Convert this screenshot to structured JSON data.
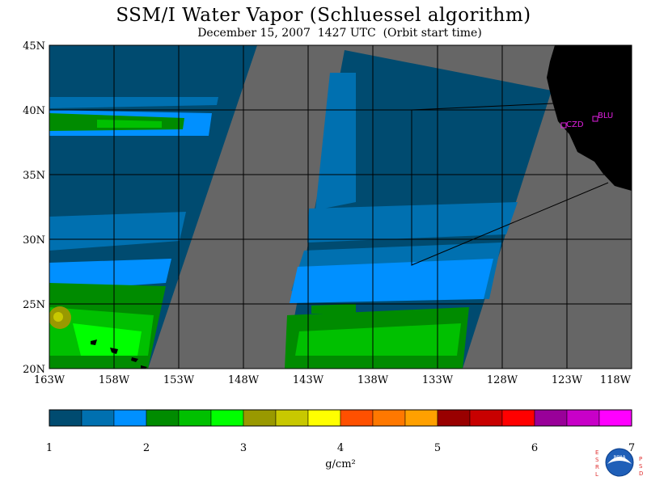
{
  "title": "SSM/I Water Vapor (Schluessel algorithm)",
  "subtitle": "December 15, 2007  1427 UTC  (Orbit start time)",
  "map": {
    "lat_labels": [
      "45N",
      "40N",
      "35N",
      "30N",
      "25N",
      "20N"
    ],
    "lon_labels": [
      "163W",
      "158W",
      "153W",
      "148W",
      "143W",
      "138W",
      "133W",
      "128W",
      "123W",
      "118W"
    ],
    "stations": [
      {
        "name": "CZD",
        "color": "#e020e0"
      },
      {
        "name": "BLU",
        "color": "#e020e0"
      }
    ],
    "colors": {
      "ocean_no_data": "#666666",
      "land": "#000000",
      "grid": "#000000"
    }
  },
  "colorbar": {
    "colors": [
      "#004b70",
      "#0070b0",
      "#0090ff",
      "#008b00",
      "#00c000",
      "#00ff00",
      "#999900",
      "#c8c800",
      "#ffff00",
      "#ff5000",
      "#ff7800",
      "#ffa000",
      "#990000",
      "#c80000",
      "#ff0000",
      "#990099",
      "#c800c8",
      "#ff00ff"
    ],
    "tick_labels": [
      "1",
      "2",
      "3",
      "4",
      "5",
      "6",
      "7"
    ],
    "units": "g/cm²"
  },
  "logo": {
    "left_letters": "ESRL",
    "right_letters": "PSD",
    "emblem_text": "NOAA"
  }
}
